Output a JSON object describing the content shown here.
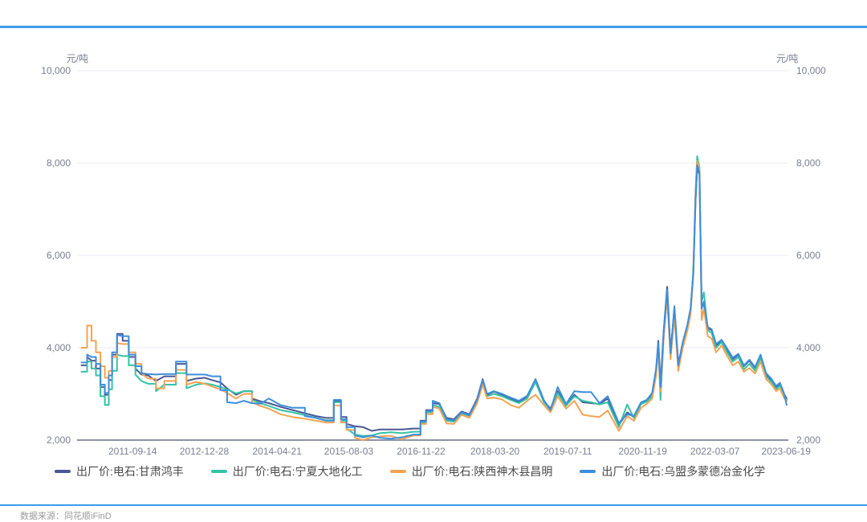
{
  "footer": {
    "text": "数据来源：同花顺iFinD"
  },
  "colors": {
    "divider": "#3e9be8",
    "grid": "#e9ebf4",
    "axis": "#8f93a8",
    "tick_text": "#7a7f93",
    "legend_text": "#4a4a4a",
    "footer_text": "#9a9a9a",
    "background": "#ffffff"
  },
  "chart_data": {
    "type": "line",
    "title": "",
    "unit_left": "元/吨",
    "unit_right": "元/吨",
    "grid": true,
    "legend_position": "bottom",
    "ylim": [
      2000,
      10000
    ],
    "y_ticks": [
      10000,
      8000,
      6000,
      4000,
      2000
    ],
    "y_tick_labels": [
      "10,000",
      "8,000",
      "6,000",
      "4,000",
      "2,000"
    ],
    "xlim": [
      2010.7,
      2023.5
    ],
    "x_tick_labels": [
      "2011-09-14",
      "2012-12-28",
      "2014-04-21",
      "2015-08-03",
      "2016-11-22",
      "2018-03-20",
      "2019-07-11",
      "2020-11-19",
      "2022-03-07",
      "2023-06-19"
    ],
    "x_tick_positions": [
      2011.7,
      2012.99,
      2014.3,
      2015.59,
      2016.89,
      2018.22,
      2019.53,
      2020.88,
      2022.18,
      2023.46
    ],
    "x": [
      2010.78,
      2010.88,
      2010.96,
      2011.04,
      2011.12,
      2011.2,
      2011.27,
      2011.33,
      2011.42,
      2011.52,
      2011.63,
      2011.75,
      2011.86,
      2011.98,
      2012.12,
      2012.27,
      2012.48,
      2012.67,
      2012.84,
      2013.0,
      2013.13,
      2013.28,
      2013.4,
      2013.56,
      2013.7,
      2013.85,
      2014.0,
      2014.15,
      2014.36,
      2014.58,
      2014.8,
      2015.0,
      2015.18,
      2015.32,
      2015.45,
      2015.55,
      2015.7,
      2015.85,
      2016.0,
      2016.15,
      2016.35,
      2016.55,
      2016.75,
      2016.88,
      2016.98,
      2017.1,
      2017.22,
      2017.35,
      2017.48,
      2017.62,
      2017.76,
      2017.9,
      2018.0,
      2018.08,
      2018.2,
      2018.35,
      2018.5,
      2018.65,
      2018.8,
      2018.95,
      2019.1,
      2019.22,
      2019.35,
      2019.5,
      2019.65,
      2019.8,
      2019.95,
      2020.1,
      2020.25,
      2020.45,
      2020.6,
      2020.72,
      2020.85,
      2020.95,
      2021.05,
      2021.12,
      2021.16,
      2021.2,
      2021.26,
      2021.32,
      2021.38,
      2021.45,
      2021.52,
      2021.6,
      2021.68,
      2021.74,
      2021.79,
      2021.83,
      2021.86,
      2021.9,
      2021.94,
      2021.98,
      2022.05,
      2022.12,
      2022.2,
      2022.3,
      2022.4,
      2022.5,
      2022.6,
      2022.7,
      2022.8,
      2022.9,
      2023.0,
      2023.1,
      2023.2,
      2023.28,
      2023.35,
      2023.42,
      2023.47
    ],
    "series": [
      {
        "name": "出厂价:电石:甘肃鸿丰",
        "color": "#4a5794",
        "values": [
          3620,
          3800,
          3720,
          3550,
          3150,
          2980,
          3300,
          3850,
          4300,
          4150,
          3800,
          3550,
          3420,
          3400,
          3280,
          3380,
          3650,
          3280,
          3330,
          3350,
          3300,
          3250,
          3120,
          2980,
          3060,
          2900,
          2840,
          2800,
          2720,
          2650,
          2580,
          2520,
          2480,
          2850,
          2500,
          2350,
          2300,
          2280,
          2200,
          2230,
          2230,
          2230,
          2250,
          2420,
          2650,
          2800,
          2780,
          2480,
          2450,
          2620,
          2560,
          2900,
          3320,
          2980,
          3050,
          2980,
          2900,
          2820,
          2950,
          3270,
          2850,
          2680,
          3060,
          2760,
          2980,
          2820,
          2800,
          2780,
          2900,
          2320,
          2600,
          2500,
          2800,
          2850,
          3000,
          3520,
          4150,
          3200,
          4400,
          5320,
          3900,
          4850,
          3650,
          4100,
          4450,
          4800,
          5600,
          7200,
          7900,
          7750,
          4900,
          4950,
          4420,
          4380,
          4050,
          4150,
          3950,
          3750,
          3850,
          3600,
          3720,
          3560,
          3820,
          3420,
          3300,
          3150,
          3220,
          3000,
          2900
        ]
      },
      {
        "name": "出厂价:电石:宁夏大地化工",
        "color": "#34c3a6",
        "values": [
          3480,
          3700,
          3550,
          3400,
          2950,
          2760,
          3100,
          3500,
          3850,
          3820,
          3620,
          3420,
          3280,
          3220,
          3060,
          3200,
          3450,
          3120,
          3200,
          3230,
          3200,
          3150,
          3100,
          3010,
          3060,
          2870,
          2800,
          2740,
          2650,
          2600,
          2540,
          2480,
          2430,
          2820,
          2420,
          2250,
          2120,
          2090,
          2100,
          2150,
          2170,
          2150,
          2180,
          2380,
          2600,
          2760,
          2720,
          2420,
          2400,
          2580,
          2520,
          2850,
          3250,
          2950,
          3000,
          2950,
          2870,
          2800,
          2900,
          3260,
          2820,
          2650,
          3020,
          2740,
          2950,
          2850,
          2820,
          2770,
          2820,
          2280,
          2770,
          2480,
          2780,
          2830,
          2950,
          3450,
          4050,
          2870,
          4300,
          5150,
          3850,
          4800,
          3600,
          4080,
          4400,
          4780,
          5650,
          7400,
          8150,
          7900,
          5000,
          5200,
          4380,
          4320,
          4000,
          4120,
          3900,
          3700,
          3800,
          3530,
          3650,
          3500,
          3780,
          3380,
          3250,
          3100,
          3180,
          2950,
          2870
        ]
      },
      {
        "name": "出厂价:电石:陕西神木县昌明",
        "color": "#f5a351",
        "values": [
          4000,
          4480,
          4150,
          3900,
          3600,
          3350,
          3500,
          3800,
          4100,
          4080,
          3900,
          3650,
          3450,
          3330,
          3120,
          3280,
          3520,
          3200,
          3260,
          3220,
          3160,
          3100,
          3020,
          2900,
          3000,
          2820,
          2740,
          2680,
          2560,
          2500,
          2460,
          2420,
          2380,
          2750,
          2380,
          2220,
          2050,
          2000,
          2060,
          2080,
          2090,
          2020,
          2100,
          2350,
          2560,
          2720,
          2680,
          2360,
          2350,
          2550,
          2480,
          2800,
          3200,
          2900,
          2920,
          2880,
          2760,
          2700,
          2850,
          2980,
          2760,
          2600,
          2950,
          2680,
          2850,
          2550,
          2520,
          2500,
          2640,
          2200,
          2520,
          2420,
          2700,
          2780,
          2900,
          3400,
          3950,
          3050,
          4250,
          5100,
          3750,
          4700,
          3500,
          4000,
          4350,
          4720,
          5550,
          7300,
          8050,
          7850,
          4600,
          4850,
          4250,
          4200,
          3900,
          4050,
          3820,
          3620,
          3700,
          3480,
          3560,
          3440,
          3700,
          3320,
          3200,
          3060,
          3120,
          2920,
          2850
        ]
      },
      {
        "name": "出厂价:电石:乌盟多蒙德冶金化学",
        "color": "#3e8edc",
        "values": [
          3680,
          3850,
          3800,
          3650,
          3200,
          3020,
          3400,
          3900,
          4280,
          4250,
          3850,
          3600,
          3450,
          3430,
          3420,
          3430,
          3700,
          3420,
          3420,
          3420,
          3380,
          3080,
          2820,
          2800,
          2850,
          2800,
          2790,
          2900,
          2760,
          2700,
          2520,
          2480,
          2420,
          2870,
          2450,
          2280,
          2100,
          2060,
          2100,
          2050,
          2030,
          2060,
          2120,
          2400,
          2630,
          2850,
          2800,
          2450,
          2430,
          2600,
          2540,
          2880,
          3300,
          3000,
          3060,
          3000,
          2920,
          2850,
          2960,
          3320,
          2870,
          2650,
          3150,
          2780,
          3060,
          3040,
          3040,
          2800,
          2950,
          2370,
          2560,
          2520,
          2820,
          2870,
          3020,
          3550,
          4100,
          3150,
          4380,
          5250,
          3880,
          4900,
          3620,
          4120,
          4480,
          4850,
          5600,
          7150,
          7950,
          7800,
          4850,
          5000,
          4450,
          4400,
          4080,
          4170,
          3980,
          3780,
          3870,
          3620,
          3740,
          3580,
          3850,
          3450,
          3320,
          3170,
          3240,
          3020,
          2760
        ]
      }
    ]
  }
}
